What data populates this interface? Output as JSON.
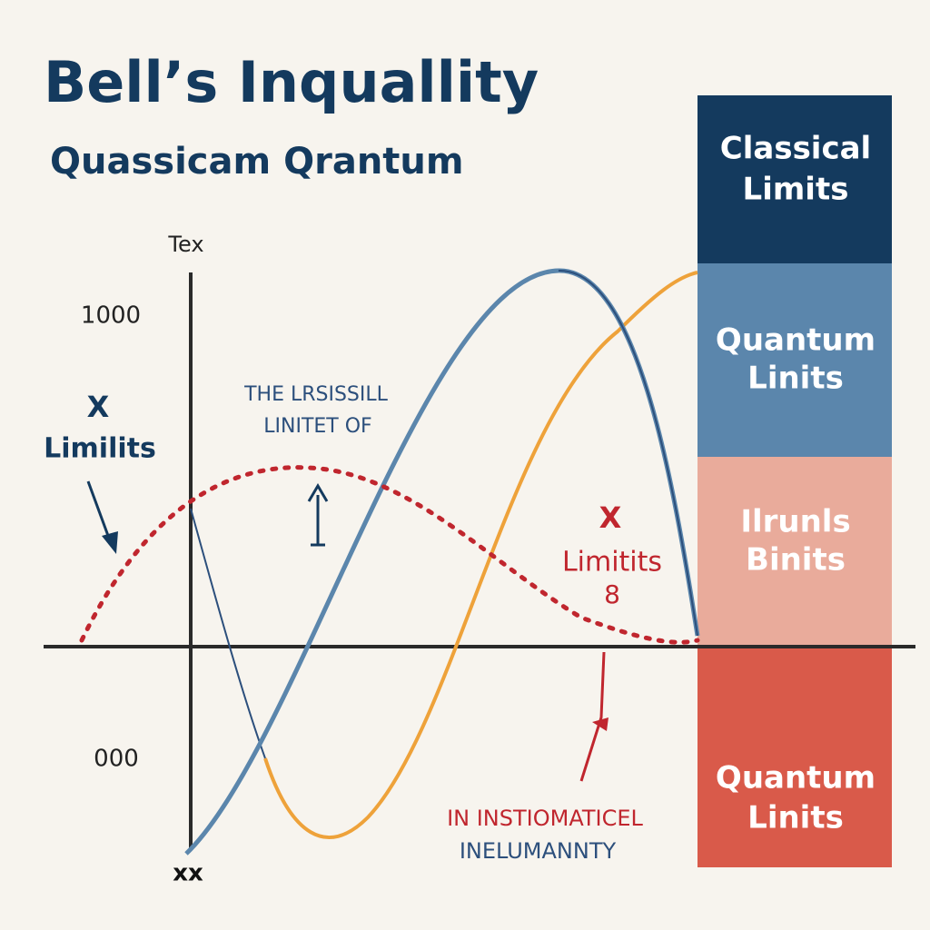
{
  "header": {
    "title": "Bell’s Inquallity",
    "subtitle": "Quassicam Qrantum"
  },
  "axis": {
    "y_label": "Tex",
    "upper_label": "1000",
    "lower_label": "000",
    "origin_label": "xx"
  },
  "annotations": {
    "left": [
      "X",
      "Limilits"
    ],
    "center": [
      "THE LRSISSILL",
      "LINITET OF"
    ],
    "right": [
      "X",
      "Limitits",
      "8"
    ],
    "bottom": [
      "IN INSTIOMATICEL",
      "INELUMANNTY"
    ]
  },
  "blocks": [
    {
      "lines": [
        "Classical",
        "Limits"
      ]
    },
    {
      "lines": [
        "Quantum",
        "Linits"
      ]
    },
    {
      "lines": [
        "Ilrunls",
        "Binits"
      ]
    },
    {
      "lines": [
        "Quantum",
        "Linits"
      ]
    }
  ]
}
